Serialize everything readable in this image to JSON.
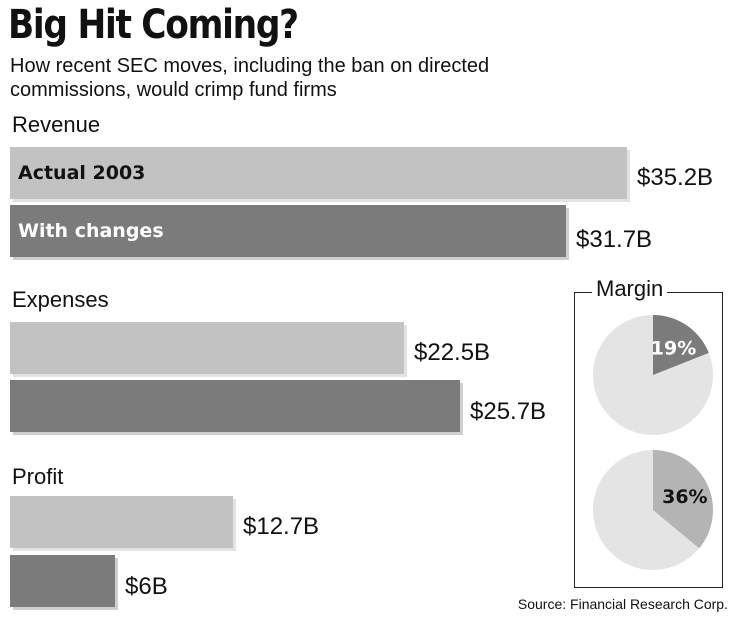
{
  "chart_data": {
    "type": "bar",
    "title": "Big Hit Coming?",
    "subtitle": "How recent SEC moves, including the ban on directed commissions, would crimp fund firms",
    "series_labels": [
      "Actual 2003",
      "With changes"
    ],
    "categories": [
      "Revenue",
      "Expenses",
      "Profit"
    ],
    "panels": [
      {
        "label": "Revenue",
        "values": [
          35.2,
          31.7
        ],
        "display": [
          "$35.2B",
          "$31.7B"
        ]
      },
      {
        "label": "Expenses",
        "values": [
          22.5,
          25.7
        ],
        "display": [
          "$22.5B",
          "$25.7B"
        ]
      },
      {
        "label": "Profit",
        "values": [
          12.7,
          6
        ],
        "display": [
          "$12.7B",
          "$6B"
        ]
      }
    ],
    "xlim": [
      0,
      38
    ],
    "colors": {
      "actual": "#c2c2c2",
      "with_changes": "#7b7b7b"
    },
    "margin": {
      "label": "Margin",
      "type": "pie",
      "pies": [
        {
          "value": 19,
          "label": "19%",
          "color": "#7b7b7b",
          "rest_color": "#e4e4e4"
        },
        {
          "value": 36,
          "label": "36%",
          "color": "#b4b4b4",
          "rest_color": "#e4e4e4"
        }
      ]
    },
    "source": "Source: Financial Research Corp."
  }
}
